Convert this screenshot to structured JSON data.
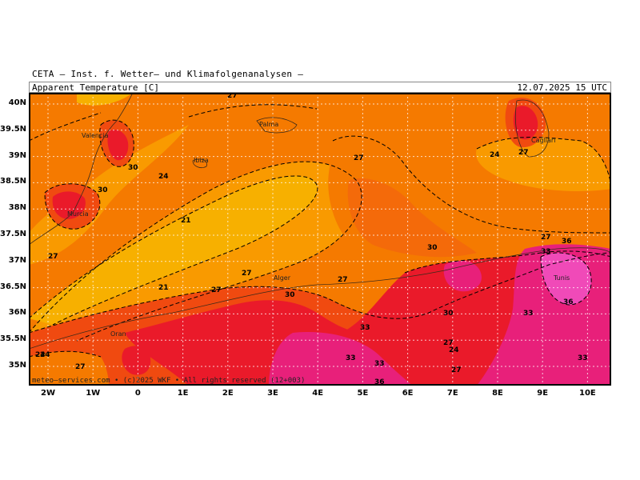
{
  "header": {
    "institute": "CETA — Inst. f. Wetter— und Klimafolgenanalysen —",
    "parameter": "Apparent Temperature [C]",
    "valid_time": "12.07.2025 15 UTC"
  },
  "map": {
    "lat_labels": [
      "40N",
      "39.5N",
      "39N",
      "38.5N",
      "38N",
      "37.5N",
      "37N",
      "36.5N",
      "36N",
      "35.5N",
      "35N"
    ],
    "lon_labels": [
      "2W",
      "1W",
      "0",
      "1E",
      "2E",
      "3E",
      "4E",
      "5E",
      "6E",
      "7E",
      "8E",
      "9E",
      "10E"
    ],
    "places": [
      "Valencia",
      "Palma",
      "Ibiza",
      "Murcia",
      "Cagliari",
      "Alger",
      "Tunis",
      "Oran"
    ],
    "contour_labels": [
      "27",
      "24",
      "21",
      "24",
      "30",
      "30",
      "27",
      "27",
      "27",
      "27",
      "30",
      "33",
      "30",
      "27",
      "24",
      "27",
      "24",
      "27",
      "33",
      "33",
      "33",
      "33",
      "36",
      "36",
      "30",
      "27",
      "27",
      "24",
      "21",
      "36",
      "33",
      "27"
    ],
    "color_scale": {
      "t21": "#f7b000",
      "t24": "#f99a00",
      "t27": "#f57a00",
      "t30": "#f04a10",
      "t33": "#ea1a2a",
      "t36": "#e8207a",
      "t39": "#f04ab8"
    },
    "footer": "meteo—services.com • (c)2025 WKF • All rights reserved (12+003)"
  }
}
